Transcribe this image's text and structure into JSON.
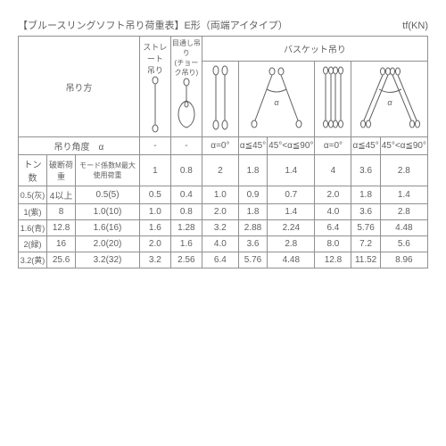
{
  "title_main": "【ブルースリングソフト吊り荷重表】E形（両端アイタイプ）",
  "title_unit": "tf(KN)",
  "header": {
    "hang_method": "吊り方",
    "straight": "ストレート吊り",
    "choke": "目通し吊り（チョーク吊り）",
    "basket": "バスケット吊り",
    "angle_label": "吊り角度　α",
    "dash": "-",
    "a0": "α=0°",
    "a45": "α≦45°",
    "a90": "45°<α≦90°"
  },
  "col_labels": {
    "ton": "トン数",
    "break": "破断荷重",
    "mode": "モード係数M最大使用荷重",
    "c1": "1",
    "c2": "0.8",
    "c3": "2",
    "c4": "1.8",
    "c5": "1.4",
    "c6": "4",
    "c7": "3.6",
    "c8": "2.8"
  },
  "rows": [
    {
      "ton": "0.5(灰)",
      "break": "4以上",
      "mode": "0.5(5)",
      "v": [
        "0.5",
        "0.4",
        "1.0",
        "0.9",
        "0.7",
        "2.0",
        "1.8",
        "1.4"
      ]
    },
    {
      "ton": "1(紫)",
      "break": "8",
      "mode": "1.0(10)",
      "v": [
        "1.0",
        "0.8",
        "2.0",
        "1.8",
        "1.4",
        "4.0",
        "3.6",
        "2.8"
      ]
    },
    {
      "ton": "1.6(青)",
      "break": "12.8",
      "mode": "1.6(16)",
      "v": [
        "1.6",
        "1.28",
        "3.2",
        "2.88",
        "2.24",
        "6.4",
        "5.76",
        "4.48"
      ]
    },
    {
      "ton": "2(緑)",
      "break": "16",
      "mode": "2.0(20)",
      "v": [
        "2.0",
        "1.6",
        "4.0",
        "3.6",
        "2.8",
        "8.0",
        "7.2",
        "5.6"
      ]
    },
    {
      "ton": "3.2(黄)",
      "break": "25.6",
      "mode": "3.2(32)",
      "v": [
        "3.2",
        "2.56",
        "6.4",
        "5.76",
        "4.48",
        "12.8",
        "11.52",
        "8.96"
      ]
    }
  ],
  "style": {
    "stroke": "#606060",
    "stroke_width": 1
  }
}
